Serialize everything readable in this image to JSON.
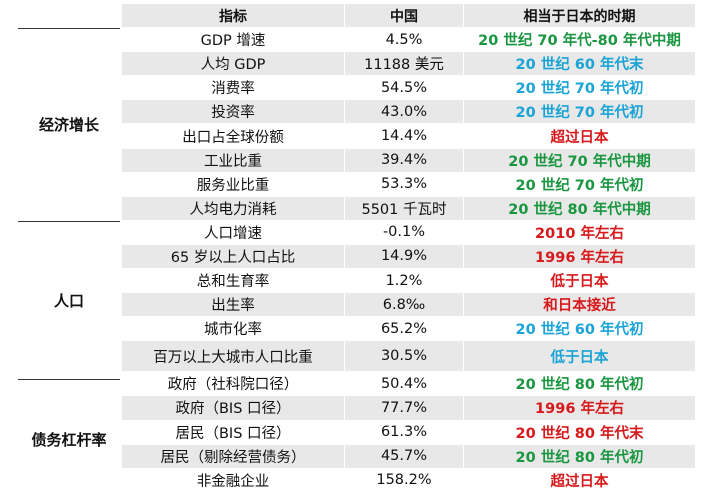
{
  "header": {
    "indicator": "指标",
    "china": "中国",
    "japan_period": "相当于日本的时期"
  },
  "categories": [
    {
      "label": "经济增长"
    },
    {
      "label": "人口"
    },
    {
      "label": "债务杠杆率"
    }
  ],
  "colors": {
    "green": "#1a9641",
    "blue": "#1aa3d6",
    "red": "#d7191c",
    "shade": "#e8e8e8"
  },
  "rows": [
    {
      "indicator": "GDP 增速",
      "china": "4.5%",
      "japan": "20 世纪 70 年代-80 年代中期",
      "color": "green"
    },
    {
      "indicator": "人均 GDP",
      "china": "11188 美元",
      "japan": "20 世纪 60 年代末",
      "color": "blue"
    },
    {
      "indicator": "消费率",
      "china": "54.5%",
      "japan": "20 世纪 70 年代初",
      "color": "blue"
    },
    {
      "indicator": "投资率",
      "china": "43.0%",
      "japan": "20 世纪 70 年代初",
      "color": "blue"
    },
    {
      "indicator": "出口占全球份额",
      "china": "14.4%",
      "japan": "超过日本",
      "color": "red"
    },
    {
      "indicator": "工业比重",
      "china": "39.4%",
      "japan": "20 世纪 70 年代中期",
      "color": "green"
    },
    {
      "indicator": "服务业比重",
      "china": "53.3%",
      "japan": "20 世纪 70 年代初",
      "color": "green"
    },
    {
      "indicator": "人均电力消耗",
      "china": "5501 千瓦时",
      "japan": "20 世纪 80 年代中期",
      "color": "green"
    },
    {
      "indicator": "人口增速",
      "china": "-0.1%",
      "japan": "2010 年左右",
      "color": "red"
    },
    {
      "indicator": "65 岁以上人口占比",
      "china": "14.9%",
      "japan": "1996 年左右",
      "color": "red"
    },
    {
      "indicator": "总和生育率",
      "china": "1.2%",
      "japan": "低于日本",
      "color": "red"
    },
    {
      "indicator": "出生率",
      "china": "6.8‰",
      "japan": "和日本接近",
      "color": "red"
    },
    {
      "indicator": "城市化率",
      "china": "65.2%",
      "japan": "20 世纪 60 年代初",
      "color": "blue"
    },
    {
      "indicator": "百万以上大城市人口比重",
      "china": "30.5%",
      "japan": "低于日本",
      "color": "blue"
    },
    {
      "indicator": "政府（社科院口径）",
      "china": "50.4%",
      "japan": "20 世纪 80 年代初",
      "color": "green"
    },
    {
      "indicator": "政府（BIS 口径）",
      "china": "77.7%",
      "japan": "1996 年左右",
      "color": "red"
    },
    {
      "indicator": "居民（BIS 口径）",
      "china": "61.3%",
      "japan": "20 世纪 80 年代末",
      "color": "red"
    },
    {
      "indicator": "居民（剔除经营债务）",
      "china": "45.7%",
      "japan": "20 世纪 80 年代初",
      "color": "green"
    },
    {
      "indicator": "非金融企业",
      "china": "158.2%",
      "japan": "超过日本",
      "color": "red"
    }
  ]
}
